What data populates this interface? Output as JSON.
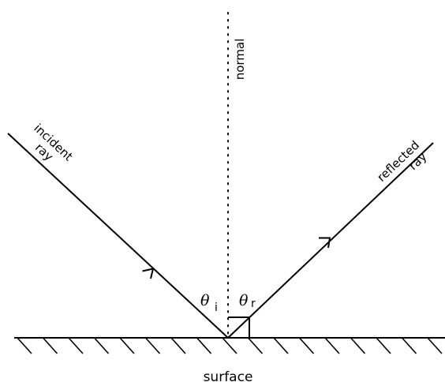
{
  "labels": {
    "normal": "normal",
    "incident_line1": "incident",
    "incident_line2": "ray",
    "reflected_line1": "reflected",
    "reflected_line2": "ray",
    "theta": "θ",
    "theta_i_sub": "i",
    "theta_r_sub": "r",
    "surface": "surface"
  },
  "colors": {
    "ink": "#000000",
    "background": "#ffffff"
  }
}
